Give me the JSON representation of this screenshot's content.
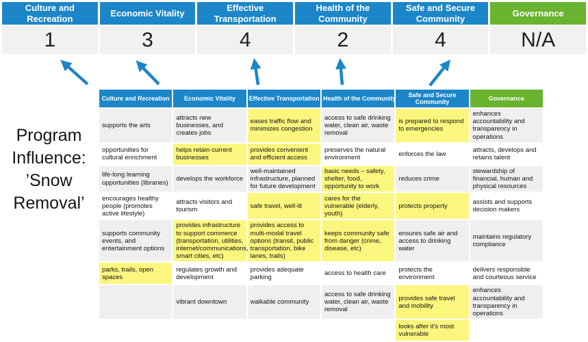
{
  "colors": {
    "blue": "#1C86C8",
    "green": "#69B32E",
    "highlight": "#FBF77E",
    "row_band": "#EFEFEF",
    "score_bg": "#F1F1F1"
  },
  "program": {
    "lines": [
      "Program Influence:",
      "’Snow Removal’"
    ]
  },
  "banner": {
    "columns": [
      {
        "label": "Culture and Recreation",
        "score": "1",
        "theme": "blue"
      },
      {
        "label": "Economic Vitality",
        "score": "3",
        "theme": "blue"
      },
      {
        "label": "Effective Transportation",
        "score": "4",
        "theme": "blue"
      },
      {
        "label": "Health of the Community",
        "score": "2",
        "theme": "blue"
      },
      {
        "label": "Safe and Secure Community",
        "score": "4",
        "theme": "blue"
      },
      {
        "label": "Governance",
        "score": "N/A",
        "theme": "green"
      }
    ]
  },
  "table": {
    "headers": [
      "Culture and Recreation",
      "Economic Vitality",
      "Effective Transportation",
      "Health of the Community",
      "Safe and Secure Community",
      "Governance"
    ],
    "rows": [
      [
        {
          "t": "supports the arts",
          "h": false
        },
        {
          "t": "attracts new businesses, and creates jobs",
          "h": false
        },
        {
          "t": "eases traffic flow and minimizes congestion",
          "h": true
        },
        {
          "t": "access to safe drinking water, clean air, waste removal",
          "h": false
        },
        {
          "t": "is prepared to respond to emergencies",
          "h": true
        },
        {
          "t": "enhances accountability and transparency in operations",
          "h": false
        }
      ],
      [
        {
          "t": "opportunities for cultural enrichment",
          "h": false
        },
        {
          "t": "helps retain current businesses",
          "h": true
        },
        {
          "t": "provides convenient and efficient access",
          "h": true
        },
        {
          "t": "preserves the natural environment",
          "h": false
        },
        {
          "t": "enforces the law",
          "h": false
        },
        {
          "t": "attracts, develops and retains talent",
          "h": false
        }
      ],
      [
        {
          "t": "life-long learning opportunities (libraries)",
          "h": false
        },
        {
          "t": "develops the workforce",
          "h": false
        },
        {
          "t": "well-maintained infrastructure, planned for future development",
          "h": false
        },
        {
          "t": "basic needs – safety, shelter, food, opportunity to work",
          "h": true
        },
        {
          "t": "reduces crime",
          "h": false
        },
        {
          "t": "stewardship of financial, human and physical resources",
          "h": false
        }
      ],
      [
        {
          "t": "encourages healthy people (promotes active lifestyle)",
          "h": false
        },
        {
          "t": "attracts visitors and tourism",
          "h": false
        },
        {
          "t": "safe travel, well-lit",
          "h": true
        },
        {
          "t": "cares for the vulnerable (elderly, youth)",
          "h": true
        },
        {
          "t": "protects property",
          "h": true
        },
        {
          "t": "assists and supports decision makers",
          "h": false
        }
      ],
      [
        {
          "t": "supports community events, and entertainment options",
          "h": false
        },
        {
          "t": "provides infrastructure to support commerce (transportation, utilities, internet/communications, smart cities, etc)",
          "h": true
        },
        {
          "t": "provides access to multi-modal travel options (transit, public transportation, bike lanes, trails)",
          "h": true
        },
        {
          "t": "keeps community safe from danger (crime, disease, etc)",
          "h": true
        },
        {
          "t": "ensures safe air and access to drinking water",
          "h": false
        },
        {
          "t": "maintains regulatory compliance",
          "h": false
        }
      ],
      [
        {
          "t": "parks, trails, open spaces",
          "h": true
        },
        {
          "t": "regulates growth and development",
          "h": false
        },
        {
          "t": "provides adequate parking",
          "h": false
        },
        {
          "t": "access to health care",
          "h": false
        },
        {
          "t": "protects the environment",
          "h": false
        },
        {
          "t": "delivers responsible and courteous service",
          "h": false
        }
      ],
      [
        {
          "t": "",
          "h": false
        },
        {
          "t": "vibrant downtown",
          "h": false
        },
        {
          "t": "walkable community",
          "h": false
        },
        {
          "t": "access to safe drinking water, clean air, waste removal",
          "h": false
        },
        {
          "t": "provides safe travel and mobility",
          "h": true
        },
        {
          "t": "enhances accountability and transparency in operations",
          "h": false
        }
      ],
      [
        {
          "t": "",
          "h": false
        },
        {
          "t": "",
          "h": false
        },
        {
          "t": "",
          "h": false
        },
        {
          "t": "",
          "h": false
        },
        {
          "t": "looks after it's most vulnerable",
          "h": true
        },
        {
          "t": "",
          "h": false
        }
      ]
    ]
  }
}
